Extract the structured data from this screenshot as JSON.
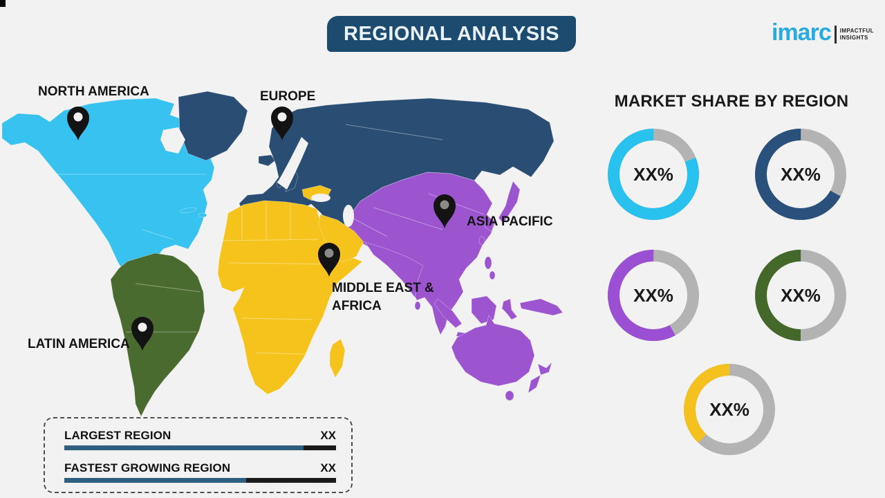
{
  "page": {
    "background": "#f2f2f2"
  },
  "header": {
    "title": "REGIONAL ANALYSIS",
    "banner_color": "#1d4b70",
    "text_color": "#eaf3fb"
  },
  "logo": {
    "brand": "imarc",
    "brand_color": "#29abe2",
    "tagline_line1": "IMPACTFUL",
    "tagline_line2": "INSIGHTS"
  },
  "map": {
    "colors": {
      "north_america": "#38c2ef",
      "europe": "#2a4e73",
      "asia_pacific": "#9c55cf",
      "middle_east_africa": "#f6c31c",
      "latin_america": "#4a6b2f",
      "ocean": "#f2f2f2"
    },
    "labels": {
      "north_america": "NORTH AMERICA",
      "europe": "EUROPE",
      "asia_pacific": "ASIA PACIFIC",
      "middle_east_africa_line1": "MIDDLE EAST &",
      "middle_east_africa_line2": "AFRICA",
      "latin_america": "LATIN AMERICA"
    }
  },
  "legend": {
    "bar_fill_color": "#2e5f80",
    "bar_track_color": "#1b1b1b",
    "items": [
      {
        "label": "LARGEST REGION",
        "value": "XX",
        "fill_pct": 88
      },
      {
        "label": "FASTEST GROWING REGION",
        "value": "XX",
        "fill_pct": 67
      }
    ]
  },
  "market_share": {
    "title": "MARKET SHARE BY REGION",
    "track_color": "#b3b3b3",
    "donuts": [
      {
        "region": "north-america",
        "color": "#29c1ee",
        "value_pct": 81,
        "label": "XX%"
      },
      {
        "region": "europe",
        "color": "#2a517c",
        "value_pct": 67,
        "label": "XX%"
      },
      {
        "region": "asia-pacific",
        "color": "#9b4fd3",
        "value_pct": 58,
        "label": "XX%"
      },
      {
        "region": "middle-east-africa",
        "color": "#44682a",
        "value_pct": 50,
        "label": "XX%"
      },
      {
        "region": "latin-america",
        "color": "#f5c11e",
        "value_pct": 38,
        "label": "XX%"
      }
    ]
  }
}
